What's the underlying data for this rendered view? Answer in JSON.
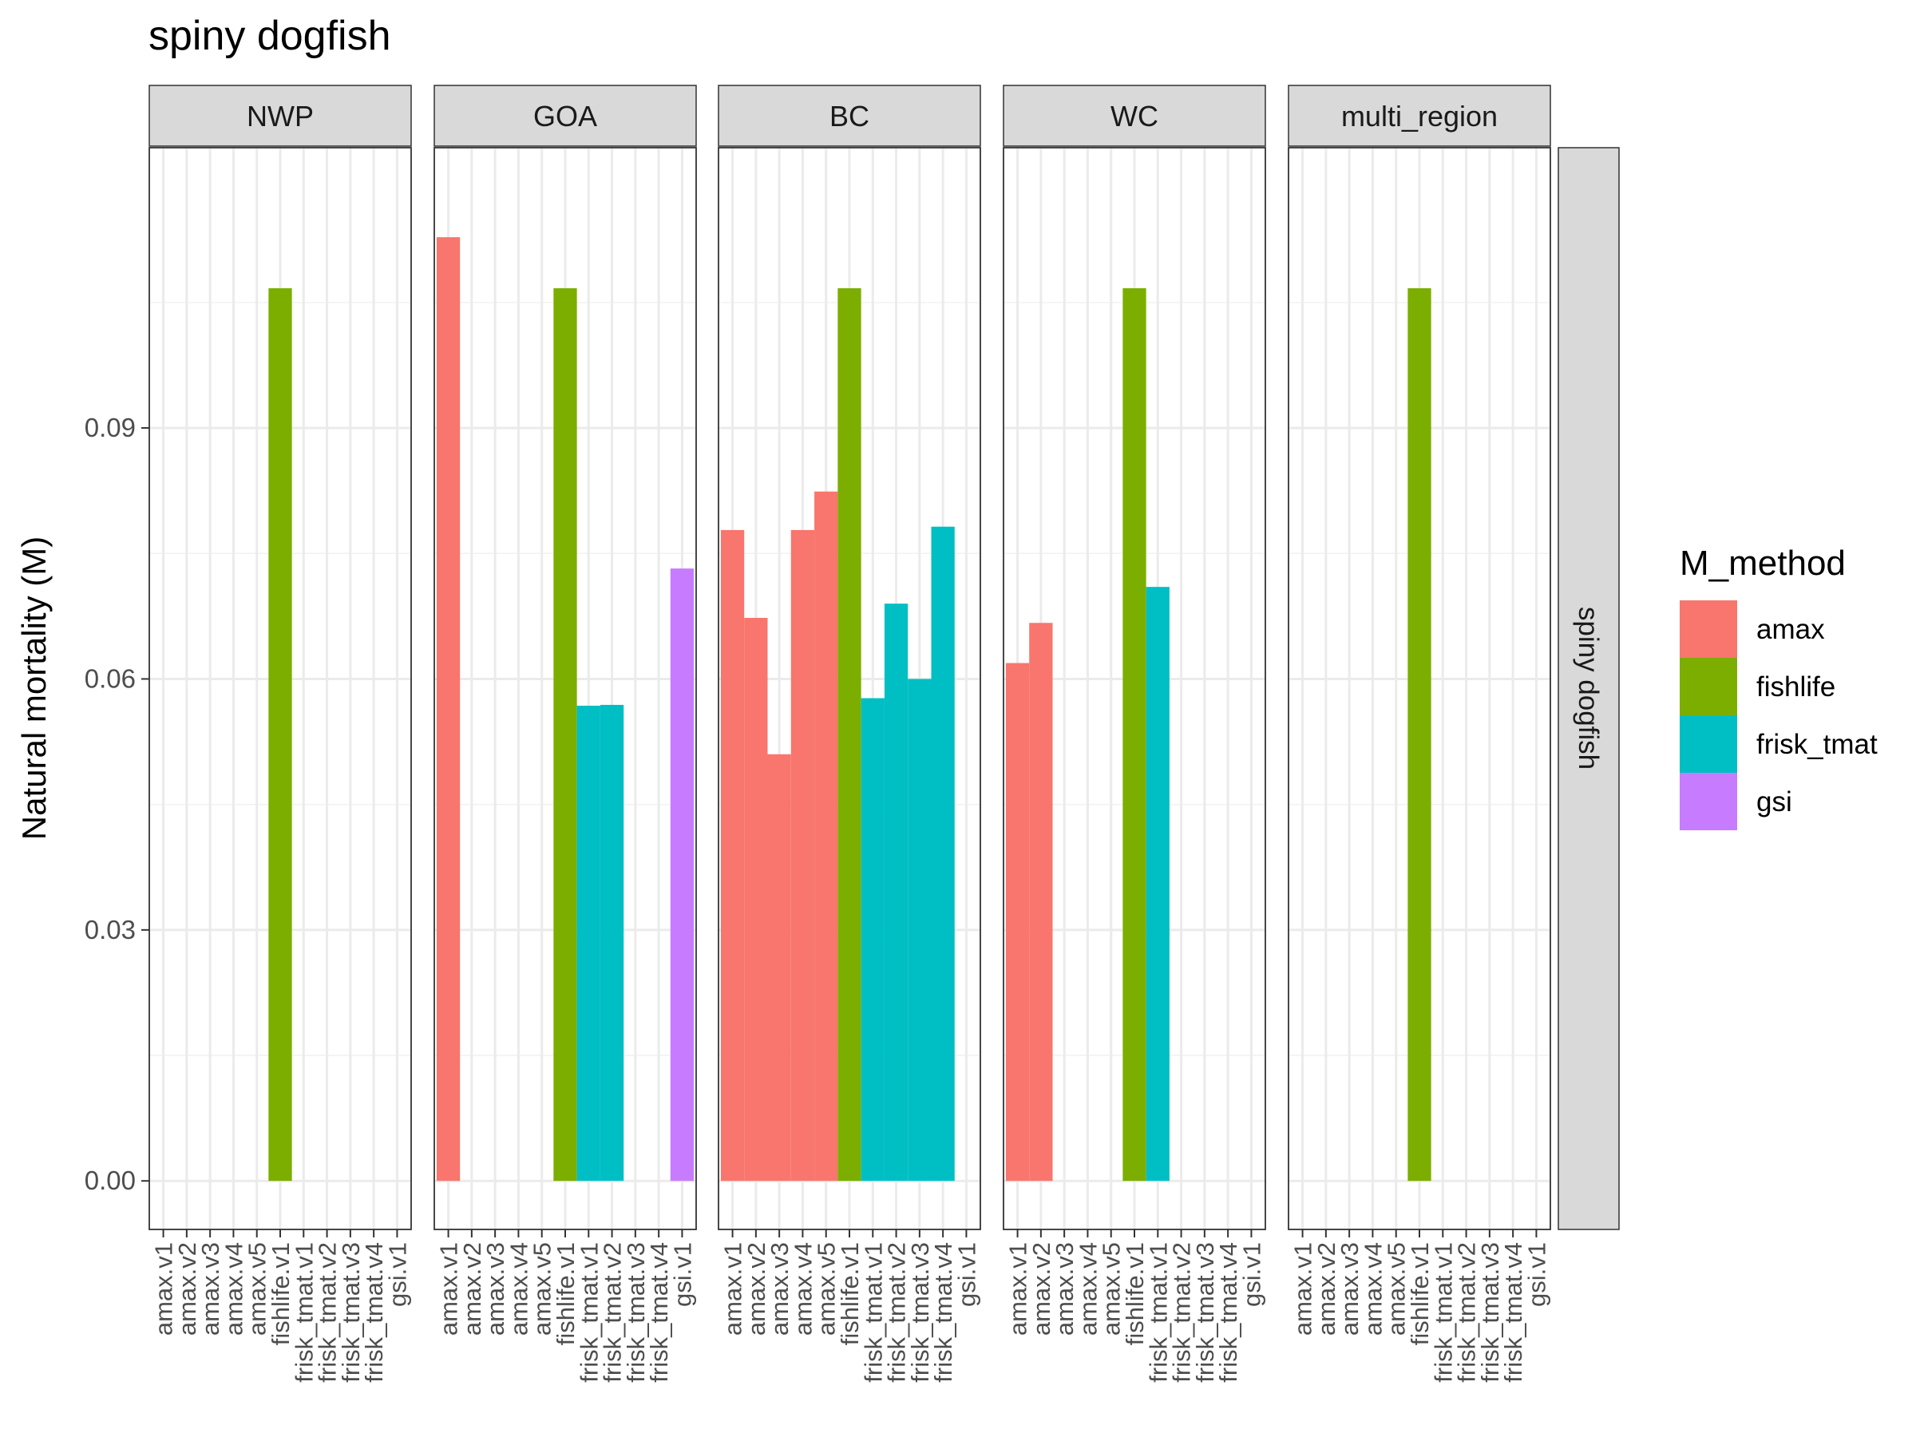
{
  "chart_data": {
    "type": "bar",
    "title": "spiny dogfish",
    "ylabel": "Natural mortality (M)",
    "xlabel": "",
    "ylim": [
      -0.0058,
      0.1235
    ],
    "yticks": [
      0.0,
      0.03,
      0.06,
      0.09
    ],
    "ytick_labels": [
      "0.00",
      "0.03",
      "0.06",
      "0.09"
    ],
    "grid": true,
    "strip_right": "spiny dogfish",
    "categories": [
      "amax.v1",
      "amax.v2",
      "amax.v3",
      "amax.v4",
      "amax.v5",
      "fishlife.v1",
      "frisk_tmat.v1",
      "frisk_tmat.v2",
      "frisk_tmat.v3",
      "frisk_tmat.v4",
      "gsi.v1"
    ],
    "legend": {
      "title": "M_method",
      "position": "right",
      "items": [
        {
          "label": "amax",
          "color": "#F8766D"
        },
        {
          "label": "fishlife",
          "color": "#7CAE00"
        },
        {
          "label": "frisk_tmat",
          "color": "#00BFC4"
        },
        {
          "label": "gsi",
          "color": "#C77CFF"
        }
      ]
    },
    "panels": [
      {
        "name": "NWP",
        "bars": [
          {
            "category": "fishlife.v1",
            "method": "fishlife",
            "value": 0.1067
          }
        ]
      },
      {
        "name": "GOA",
        "bars": [
          {
            "category": "amax.v1",
            "method": "amax",
            "value": 0.1128
          },
          {
            "category": "fishlife.v1",
            "method": "fishlife",
            "value": 0.1067
          },
          {
            "category": "frisk_tmat.v1",
            "method": "frisk_tmat",
            "value": 0.0568
          },
          {
            "category": "frisk_tmat.v2",
            "method": "frisk_tmat",
            "value": 0.0569
          },
          {
            "category": "gsi.v1",
            "method": "gsi",
            "value": 0.0732
          }
        ]
      },
      {
        "name": "BC",
        "bars": [
          {
            "category": "amax.v1",
            "method": "amax",
            "value": 0.0778
          },
          {
            "category": "amax.v2",
            "method": "amax",
            "value": 0.0673
          },
          {
            "category": "amax.v3",
            "method": "amax",
            "value": 0.051
          },
          {
            "category": "amax.v4",
            "method": "amax",
            "value": 0.0778
          },
          {
            "category": "amax.v5",
            "method": "amax",
            "value": 0.0824
          },
          {
            "category": "fishlife.v1",
            "method": "fishlife",
            "value": 0.1067
          },
          {
            "category": "frisk_tmat.v1",
            "method": "frisk_tmat",
            "value": 0.0577
          },
          {
            "category": "frisk_tmat.v2",
            "method": "frisk_tmat",
            "value": 0.069
          },
          {
            "category": "frisk_tmat.v3",
            "method": "frisk_tmat",
            "value": 0.06
          },
          {
            "category": "frisk_tmat.v4",
            "method": "frisk_tmat",
            "value": 0.0782
          }
        ]
      },
      {
        "name": "WC",
        "bars": [
          {
            "category": "amax.v1",
            "method": "amax",
            "value": 0.0619
          },
          {
            "category": "amax.v2",
            "method": "amax",
            "value": 0.0667
          },
          {
            "category": "fishlife.v1",
            "method": "fishlife",
            "value": 0.1067
          },
          {
            "category": "frisk_tmat.v1",
            "method": "frisk_tmat",
            "value": 0.071
          }
        ]
      },
      {
        "name": "multi_region",
        "bars": [
          {
            "category": "fishlife.v1",
            "method": "fishlife",
            "value": 0.1067
          }
        ]
      }
    ]
  }
}
